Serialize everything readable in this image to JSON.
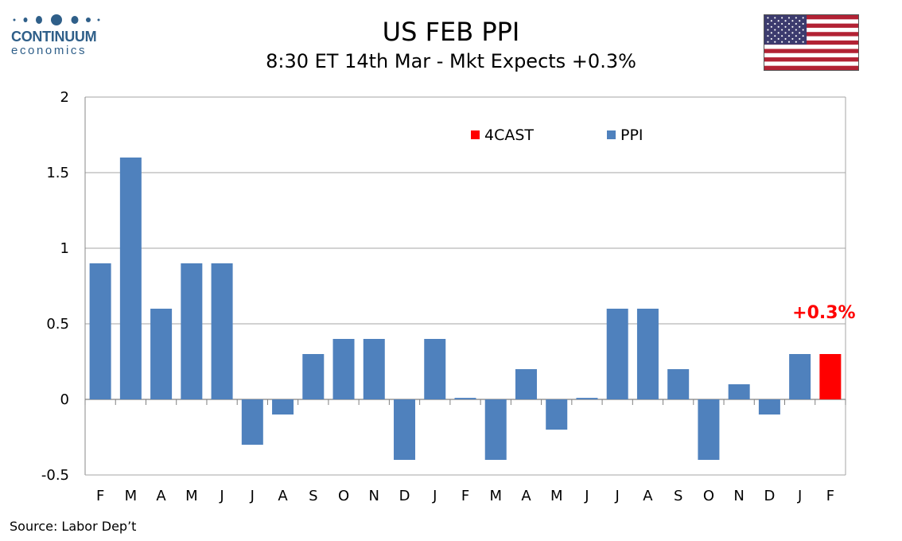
{
  "header": {
    "logo": {
      "word1": "CONTINUUM",
      "word2": "economics",
      "color": "#2f5f89"
    },
    "title": "US FEB PPI",
    "subtitle": "8:30 ET 14th Mar - Mkt Expects +0.3%",
    "flag_icon": "us-flag-icon"
  },
  "footer": {
    "source": "Source: Labor Dep’t"
  },
  "chart_data": {
    "type": "bar",
    "categories": [
      "F",
      "M",
      "A",
      "M",
      "J",
      "J",
      "A",
      "S",
      "O",
      "N",
      "D",
      "J",
      "F",
      "M",
      "A",
      "M",
      "J",
      "J",
      "A",
      "S",
      "O",
      "N",
      "D",
      "J",
      "F"
    ],
    "series": [
      {
        "name": "PPI",
        "color": "#4f81bd",
        "values": [
          0.9,
          1.6,
          0.6,
          0.9,
          0.9,
          -0.3,
          -0.1,
          0.3,
          0.4,
          0.4,
          -0.4,
          0.4,
          0.01,
          -0.4,
          0.2,
          -0.2,
          0.01,
          0.6,
          0.6,
          0.2,
          -0.4,
          0.1,
          -0.1,
          0.3,
          null
        ]
      },
      {
        "name": "4CAST",
        "color": "#ff0000",
        "values": [
          null,
          null,
          null,
          null,
          null,
          null,
          null,
          null,
          null,
          null,
          null,
          null,
          null,
          null,
          null,
          null,
          null,
          null,
          null,
          null,
          null,
          null,
          null,
          null,
          0.3
        ]
      }
    ],
    "y_ticks": [
      "2",
      "1.5",
      "1",
      "0.5",
      "0",
      "-0.5"
    ],
    "ylim": [
      -0.5,
      2
    ],
    "grid": true,
    "legend_position": "top-center",
    "annotation": {
      "text": "+0.3%",
      "color": "#ff0000",
      "category_index": 24
    }
  }
}
